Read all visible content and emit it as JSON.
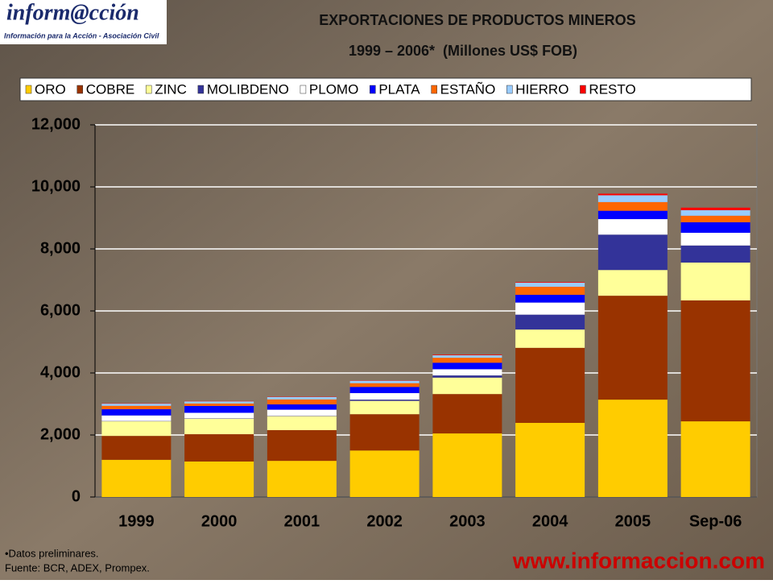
{
  "logo": {
    "name": "inform@cción",
    "tagline": "Información para la Acción - Asociación Civil"
  },
  "chart_data": {
    "type": "stacked-bar",
    "title": "EXPORTACIONES DE PRODUCTOS MINEROS",
    "subtitle": "1999 – 2006*  (Millones US$ FOB)",
    "categories": [
      "1999",
      "2000",
      "2001",
      "2002",
      "2003",
      "2004",
      "2005",
      "Sep-06"
    ],
    "series": [
      {
        "name": "ORO",
        "color": "#ffcc00",
        "values": [
          1200,
          1145,
          1166,
          1500,
          2050,
          2390,
          3140,
          2440
        ]
      },
      {
        "name": "COBRE",
        "color": "#993300",
        "values": [
          770,
          880,
          990,
          1170,
          1270,
          2420,
          3350,
          3900
        ]
      },
      {
        "name": "ZINC",
        "color": "#ffff99",
        "values": [
          470,
          500,
          450,
          430,
          530,
          590,
          830,
          1220
        ]
      },
      {
        "name": "MOLIBDENO",
        "color": "#333399",
        "values": [
          10,
          10,
          10,
          40,
          70,
          480,
          1140,
          550
        ]
      },
      {
        "name": "PLOMO",
        "color": "#ffffff",
        "values": [
          180,
          180,
          200,
          210,
          200,
          390,
          500,
          410
        ]
      },
      {
        "name": "PLATA",
        "color": "#0000ff",
        "values": [
          200,
          220,
          170,
          200,
          210,
          250,
          270,
          340
        ]
      },
      {
        "name": "ESTAÑO",
        "color": "#ff6600",
        "values": [
          110,
          80,
          160,
          120,
          160,
          260,
          280,
          210
        ]
      },
      {
        "name": "HIERRO",
        "color": "#99ccff",
        "values": [
          70,
          70,
          80,
          80,
          80,
          130,
          220,
          180
        ]
      },
      {
        "name": "RESTO",
        "color": "#ff0000",
        "values": [
          10,
          10,
          10,
          10,
          20,
          20,
          50,
          80
        ]
      }
    ],
    "ylim": [
      0,
      12000
    ],
    "yticks": [
      0,
      {
        "value": 2000,
        "label": "2,000"
      },
      {
        "value": 4000,
        "label": "4,000"
      },
      {
        "value": 6000,
        "label": "6,000"
      },
      {
        "value": 8000,
        "label": "8,000"
      },
      {
        "value": 10000,
        "label": "10,000"
      },
      {
        "value": 12000,
        "label": "12,000"
      }
    ],
    "grid": true
  },
  "footnotes": [
    "•Datos preliminares.",
    "Fuente: BCR, ADEX, Prompex."
  ],
  "url": "www.informaccion.com"
}
